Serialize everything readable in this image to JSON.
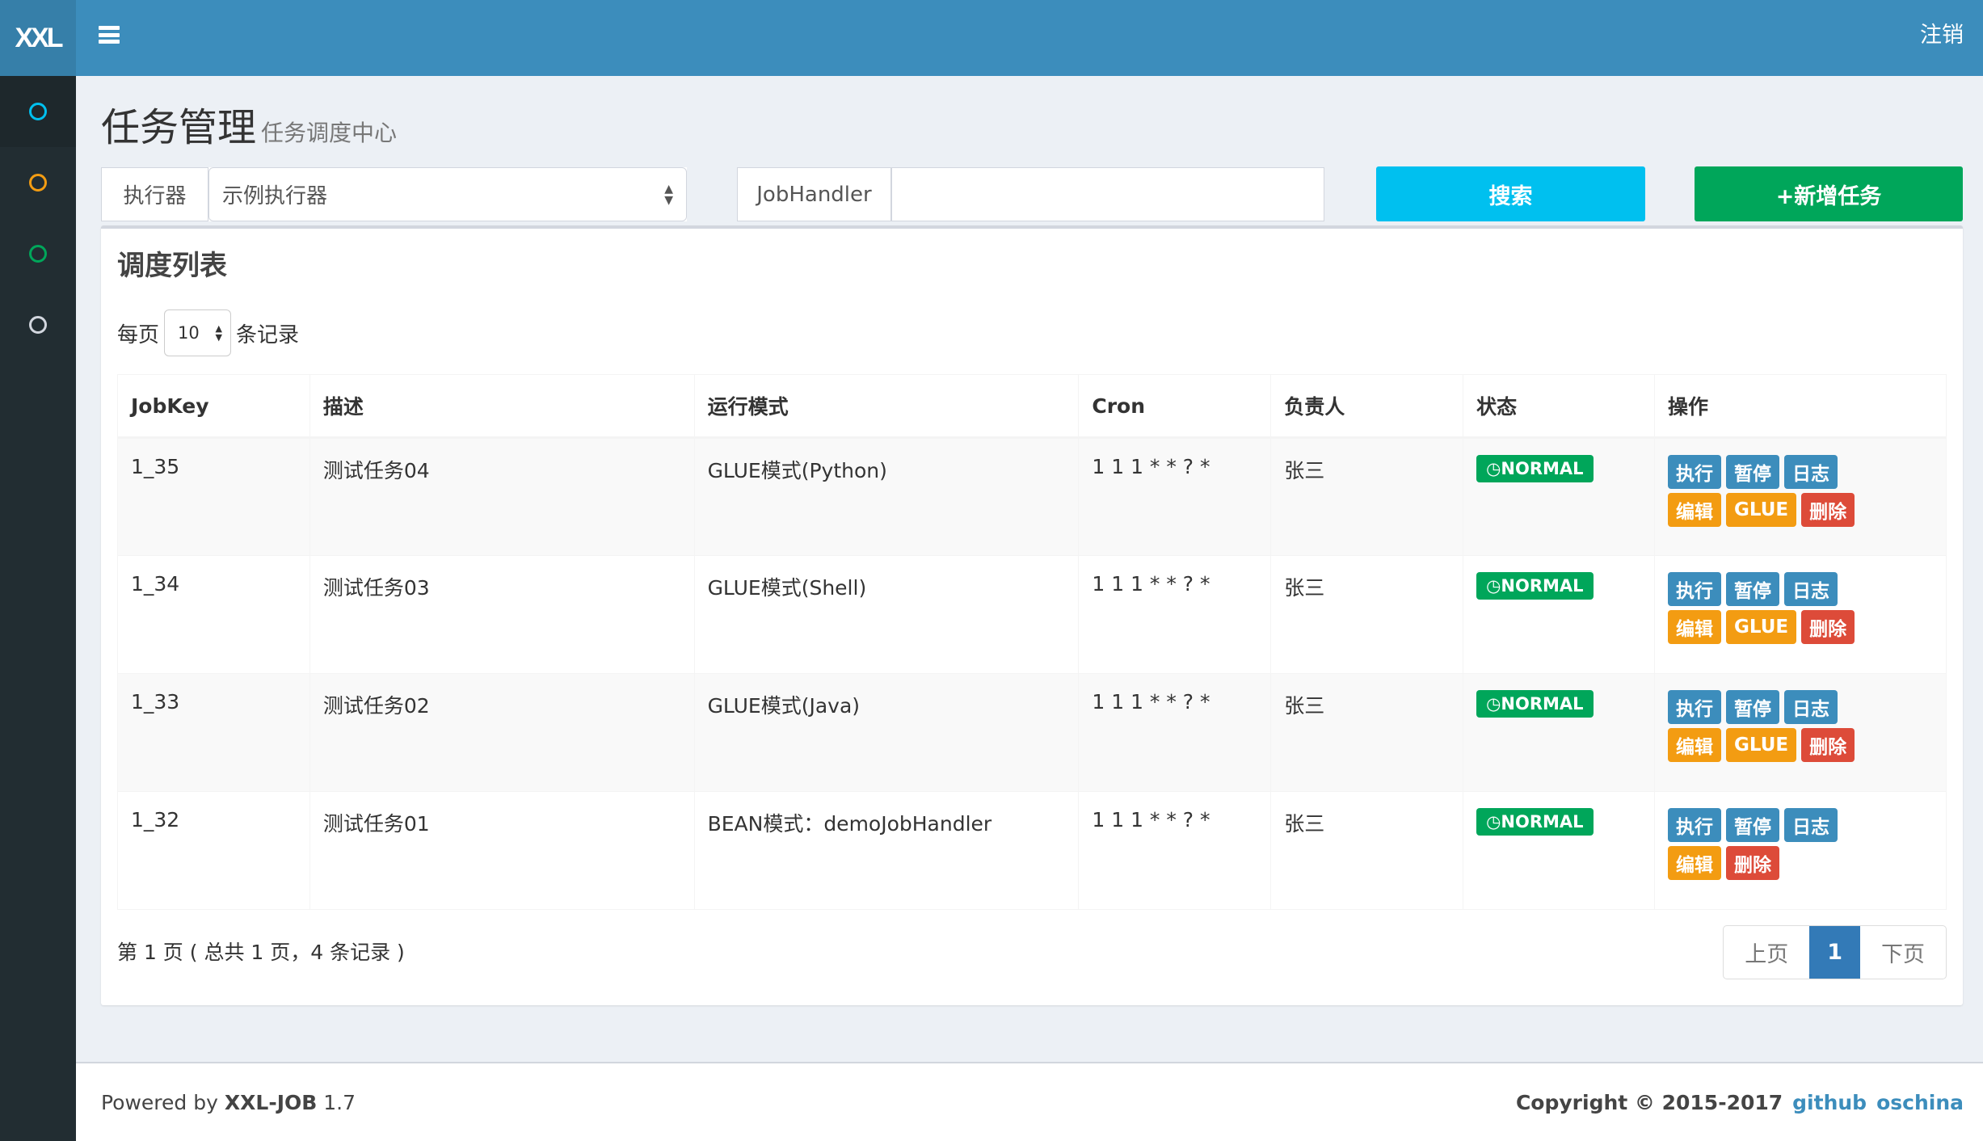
{
  "header": {
    "logo": "XXL",
    "logout": "注销"
  },
  "sidebar": {
    "items": [
      {
        "icon": "circle-icon",
        "color": "#00c0ef"
      },
      {
        "icon": "circle-icon",
        "color": "#f39c12"
      },
      {
        "icon": "circle-icon",
        "color": "#00a65a"
      },
      {
        "icon": "circle-icon",
        "color": "#d2d6de"
      }
    ]
  },
  "page": {
    "title": "任务管理",
    "subtitle": "任务调度中心"
  },
  "filter": {
    "executor_label": "执行器",
    "executor_value": "示例执行器",
    "jobhandler_label": "JobHandler",
    "jobhandler_value": "",
    "search": "搜索",
    "add": "+新增任务"
  },
  "box": {
    "title": "调度列表",
    "per_page_prefix": "每页",
    "per_page_value": "10",
    "per_page_suffix": "条记录"
  },
  "table": {
    "columns": [
      "JobKey",
      "描述",
      "运行模式",
      "Cron",
      "负责人",
      "状态",
      "操作"
    ],
    "rows": [
      {
        "key": "1_35",
        "desc": "测试任务04",
        "mode": "GLUE模式(Python)",
        "cron": "1 1 1 * * ? *",
        "owner": "张三",
        "status": "NORMAL",
        "glue": true
      },
      {
        "key": "1_34",
        "desc": "测试任务03",
        "mode": "GLUE模式(Shell)",
        "cron": "1 1 1 * * ? *",
        "owner": "张三",
        "status": "NORMAL",
        "glue": true
      },
      {
        "key": "1_33",
        "desc": "测试任务02",
        "mode": "GLUE模式(Java)",
        "cron": "1 1 1 * * ? *",
        "owner": "张三",
        "status": "NORMAL",
        "glue": true
      },
      {
        "key": "1_32",
        "desc": "测试任务01",
        "mode": "BEAN模式：demoJobHandler",
        "cron": "1 1 1 * * ? *",
        "owner": "张三",
        "status": "NORMAL",
        "glue": false
      }
    ],
    "actions": {
      "run": "执行",
      "pause": "暂停",
      "log": "日志",
      "edit": "编辑",
      "glue": "GLUE",
      "delete": "删除"
    }
  },
  "pagination": {
    "info": "第 1 页 ( 总共 1 页，4 条记录 )",
    "prev": "上页",
    "current": "1",
    "next": "下页"
  },
  "footer": {
    "powered_prefix": "Powered by ",
    "powered_name": "XXL-JOB",
    "powered_version": " 1.7",
    "copyright": "Copyright © 2015-2017",
    "github": "github",
    "oschina": "oschina"
  }
}
